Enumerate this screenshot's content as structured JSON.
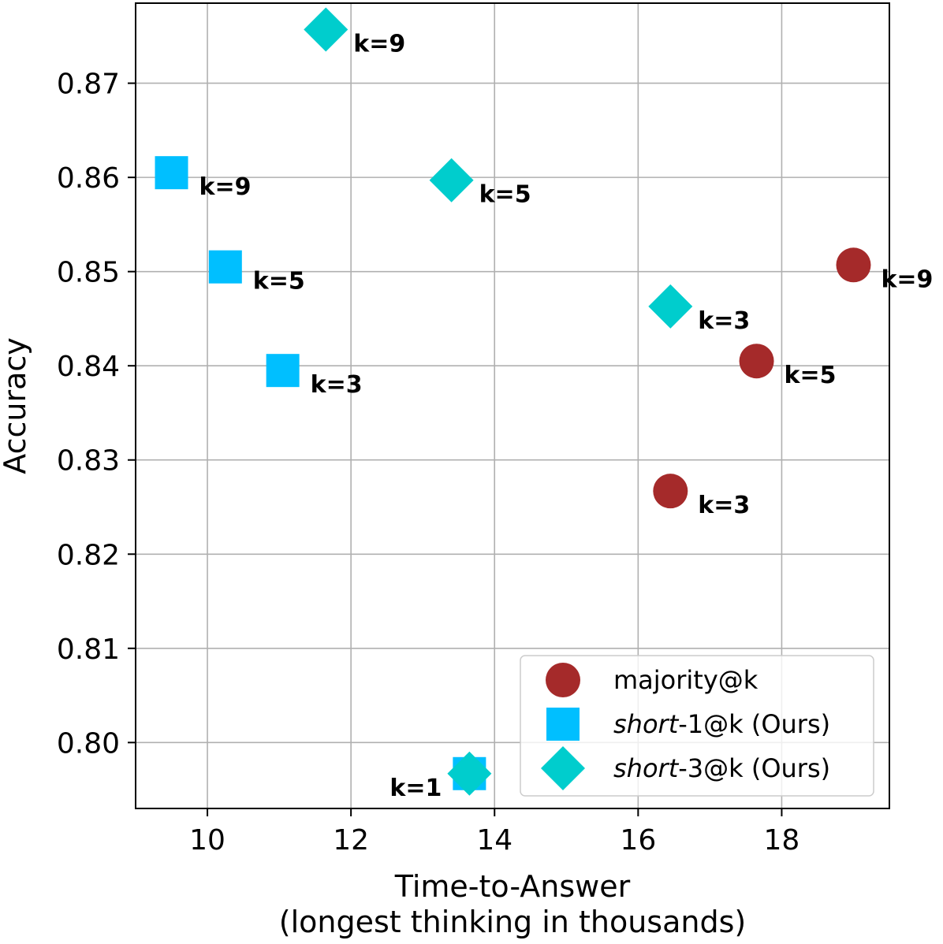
{
  "chart_data": {
    "type": "scatter",
    "title": "",
    "xlabel": "Time-to-Answer",
    "xlabel_line2": "(longest thinking in thousands)",
    "ylabel": "Accuracy",
    "xlim": [
      9.0,
      19.5
    ],
    "ylim": [
      0.793,
      0.8785
    ],
    "xticks": [
      10,
      12,
      14,
      16,
      18
    ],
    "yticks": [
      0.8,
      0.81,
      0.82,
      0.83,
      0.84,
      0.85,
      0.86,
      0.87
    ],
    "xtick_labels": [
      "10",
      "12",
      "14",
      "16",
      "18"
    ],
    "ytick_labels": [
      "0.80",
      "0.81",
      "0.82",
      "0.83",
      "0.84",
      "0.85",
      "0.86",
      "0.87"
    ],
    "grid": true,
    "legend_position": "bottom-right",
    "series": [
      {
        "name": "majority@k",
        "legend_prefix": "",
        "legend_italic": "",
        "legend_suffix": "majority@k",
        "marker": "circle",
        "color": "#a52a2a",
        "points": [
          {
            "x": 16.45,
            "y": 0.8267,
            "label": "k=3"
          },
          {
            "x": 17.65,
            "y": 0.8405,
            "label": "k=5"
          },
          {
            "x": 19.0,
            "y": 0.8507,
            "label": "k=9"
          }
        ]
      },
      {
        "name": "short-1@k  (Ours)",
        "legend_italic": "short",
        "legend_suffix": "-1@k  (Ours)",
        "marker": "square",
        "color": "#00bfff",
        "points": [
          {
            "x": 13.65,
            "y": 0.7967,
            "label": ""
          },
          {
            "x": 11.05,
            "y": 0.8395,
            "label": "k=3"
          },
          {
            "x": 10.25,
            "y": 0.8505,
            "label": "k=5"
          },
          {
            "x": 9.5,
            "y": 0.8605,
            "label": "k=9"
          }
        ]
      },
      {
        "name": "short-3@k  (Ours)",
        "legend_italic": "short",
        "legend_suffix": "-3@k  (Ours)",
        "marker": "diamond",
        "color": "#00cdcd",
        "points": [
          {
            "x": 13.65,
            "y": 0.7967,
            "label": "k=1"
          },
          {
            "x": 16.45,
            "y": 0.8463,
            "label": "k=3"
          },
          {
            "x": 13.4,
            "y": 0.8597,
            "label": "k=5"
          },
          {
            "x": 11.65,
            "y": 0.8757,
            "label": "k=9"
          }
        ]
      }
    ]
  }
}
